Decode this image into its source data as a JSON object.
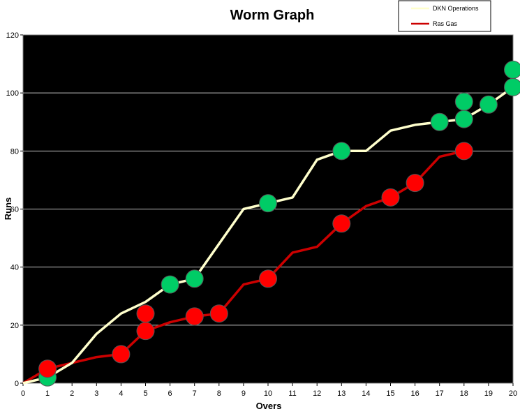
{
  "chart_data": {
    "type": "line",
    "title": "Worm Graph",
    "xlabel": "Overs",
    "ylabel": "Runs",
    "xlim": [
      0,
      20
    ],
    "ylim": [
      0,
      120
    ],
    "x_ticks": [
      0,
      1,
      2,
      3,
      4,
      5,
      6,
      7,
      8,
      9,
      10,
      11,
      12,
      13,
      14,
      15,
      16,
      17,
      18,
      19,
      20
    ],
    "y_ticks": [
      0,
      20,
      40,
      60,
      80,
      100,
      120
    ],
    "grid": "horizontal",
    "plot_background": "#000000",
    "legend": {
      "position": "top-right"
    },
    "series": [
      {
        "name": "DKN Operations",
        "color": "#ffffcc",
        "x": [
          0,
          1,
          2,
          3,
          4,
          5,
          6,
          7,
          8,
          9,
          10,
          11,
          12,
          13,
          14,
          15,
          16,
          17,
          18,
          19,
          20
        ],
        "values": [
          0,
          2,
          7,
          17,
          24,
          28,
          34,
          36,
          48,
          60,
          62,
          64,
          77,
          80,
          80,
          87,
          89,
          90,
          91,
          96,
          102
        ],
        "wickets": [
          {
            "over": 1,
            "runs": 2
          },
          {
            "over": 6,
            "runs": 34
          },
          {
            "over": 7,
            "runs": 36
          },
          {
            "over": 10,
            "runs": 62
          },
          {
            "over": 13,
            "runs": 80
          },
          {
            "over": 17,
            "runs": 90
          },
          {
            "over": 18,
            "runs": 91
          },
          {
            "over": 18,
            "runs": 97
          },
          {
            "over": 19,
            "runs": 96
          },
          {
            "over": 20,
            "runs": 102
          },
          {
            "over": 20,
            "runs": 108
          }
        ],
        "marker_color": "#00cc66"
      },
      {
        "name": "Ras Gas",
        "color": "#cc0000",
        "x": [
          0,
          1,
          2,
          3,
          4,
          5,
          6,
          7,
          8,
          9,
          10,
          11,
          12,
          13,
          14,
          15,
          16,
          17,
          18
        ],
        "values": [
          0,
          5,
          7,
          9,
          10,
          18,
          21,
          23,
          24,
          34,
          36,
          45,
          47,
          55,
          61,
          64,
          69,
          78,
          80
        ],
        "wickets": [
          {
            "over": 1,
            "runs": 5
          },
          {
            "over": 4,
            "runs": 10
          },
          {
            "over": 5,
            "runs": 18
          },
          {
            "over": 5,
            "runs": 24
          },
          {
            "over": 7,
            "runs": 23
          },
          {
            "over": 8,
            "runs": 24
          },
          {
            "over": 10,
            "runs": 36
          },
          {
            "over": 13,
            "runs": 55
          },
          {
            "over": 15,
            "runs": 64
          },
          {
            "over": 16,
            "runs": 69
          },
          {
            "over": 18,
            "runs": 80
          }
        ],
        "marker_color": "#ff0000"
      }
    ]
  }
}
